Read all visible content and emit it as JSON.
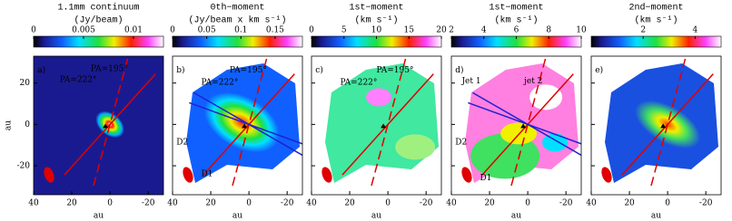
{
  "chart_data": [
    {
      "type": "image",
      "title": [
        "1.1mm continuum",
        "(Jy/beam)"
      ],
      "colorbar_lim": [
        0,
        0.013
      ],
      "colorbar_ticks": [
        0,
        0.005,
        0.01
      ],
      "xlim": [
        40,
        -28
      ],
      "xticks": [
        40,
        20,
        0,
        -20
      ],
      "ylim": [
        -34,
        33
      ],
      "yticks": [
        20,
        0,
        -20
      ],
      "xlabel": "au",
      "ylabel": "au",
      "annotations": [
        {
          "text": "a)",
          "color": "#ffffff"
        },
        {
          "text": "PA=222°",
          "color": "#ffffff"
        },
        {
          "text": "PA=195°",
          "color": "#ffffff"
        }
      ]
    },
    {
      "type": "image",
      "title": [
        "0th−moment",
        "(Jy/beam x km s⁻¹)"
      ],
      "colorbar_lim": [
        0,
        0.19
      ],
      "colorbar_ticks": [
        0,
        0.05,
        0.1,
        0.15
      ],
      "xlim": [
        40,
        -28
      ],
      "xticks": [
        40,
        20,
        0,
        -20
      ],
      "ylim": [
        -34,
        33
      ],
      "yticks": [
        20,
        0,
        -20
      ],
      "xlabel": "au",
      "annotations": [
        {
          "text": "b)",
          "color": "#000000"
        },
        {
          "text": "PA=195°",
          "color": "#000000"
        },
        {
          "text": "PA=222°",
          "color": "#000000"
        },
        {
          "text": "D2",
          "color": "#e00000"
        },
        {
          "text": "D1",
          "color": "#2020d0"
        }
      ]
    },
    {
      "type": "image",
      "title": [
        "1st−moment",
        "(km s⁻¹)"
      ],
      "colorbar_lim": [
        0,
        20
      ],
      "colorbar_ticks": [
        0,
        5,
        10,
        15,
        20
      ],
      "xlim": [
        40,
        -28
      ],
      "xticks": [
        40,
        20,
        0,
        -20
      ],
      "ylim": [
        -34,
        33
      ],
      "yticks": [
        20,
        0,
        -20
      ],
      "xlabel": "au",
      "annotations": [
        {
          "text": "c)",
          "color": "#000000"
        },
        {
          "text": "PA=195°",
          "color": "#000000"
        },
        {
          "text": "PA=222°",
          "color": "#000000"
        }
      ]
    },
    {
      "type": "image",
      "title": [
        "1st−moment",
        "(km s⁻¹)"
      ],
      "colorbar_lim": [
        2,
        10
      ],
      "colorbar_ticks": [
        2,
        4,
        6,
        8,
        10
      ],
      "xlim": [
        40,
        -28
      ],
      "xticks": [
        40,
        20,
        0,
        -20
      ],
      "ylim": [
        -34,
        33
      ],
      "yticks": [
        20,
        0,
        -20
      ],
      "xlabel": "au",
      "annotations": [
        {
          "text": "d)",
          "color": "#000000"
        },
        {
          "text": "Jet 1",
          "color": "#2020d0"
        },
        {
          "text": "jet 2",
          "color": "#2020d0"
        },
        {
          "text": "D2",
          "color": "#2020d0"
        },
        {
          "text": "D1",
          "color": "#2020d0"
        }
      ]
    },
    {
      "type": "image",
      "title": [
        "2nd−moment",
        "(km s⁻¹)"
      ],
      "colorbar_lim": [
        0,
        5
      ],
      "colorbar_ticks": [
        2,
        4
      ],
      "xlim": [
        40,
        -28
      ],
      "xticks": [
        40,
        20,
        0,
        -20
      ],
      "ylim": [
        -34,
        33
      ],
      "yticks": [
        20,
        0,
        -20
      ],
      "xlabel": "au",
      "annotations": [
        {
          "text": "e)",
          "color": "#000000"
        }
      ]
    }
  ]
}
